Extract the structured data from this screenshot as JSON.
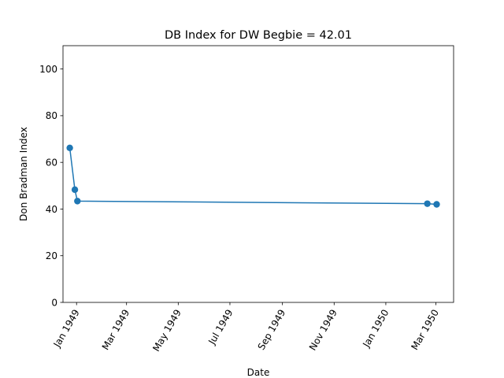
{
  "chart_data": {
    "type": "line",
    "title": "DB Index for DW Begbie = 42.01",
    "xlabel": "Date",
    "ylabel": "Don Bradman Index",
    "x_ticks": [
      "Jan 1949",
      "Mar 1949",
      "May 1949",
      "Jul 1949",
      "Sep 1949",
      "Nov 1949",
      "Jan 1950",
      "Mar 1950"
    ],
    "y_ticks": [
      0,
      20,
      40,
      60,
      80,
      100
    ],
    "ylim": [
      0,
      110
    ],
    "xlim": [
      "1948-12-16",
      "1950-03-22"
    ],
    "grid": false,
    "series": [
      {
        "color": "#1f77b4",
        "marker": "circle",
        "points": [
          {
            "x": "1948-12-24",
            "y": 66.2
          },
          {
            "x": "1948-12-30",
            "y": 48.3
          },
          {
            "x": "1949-01-02",
            "y": 43.4
          },
          {
            "x": "1950-02-19",
            "y": 42.3
          },
          {
            "x": "1950-03-02",
            "y": 42.01
          }
        ]
      }
    ]
  }
}
